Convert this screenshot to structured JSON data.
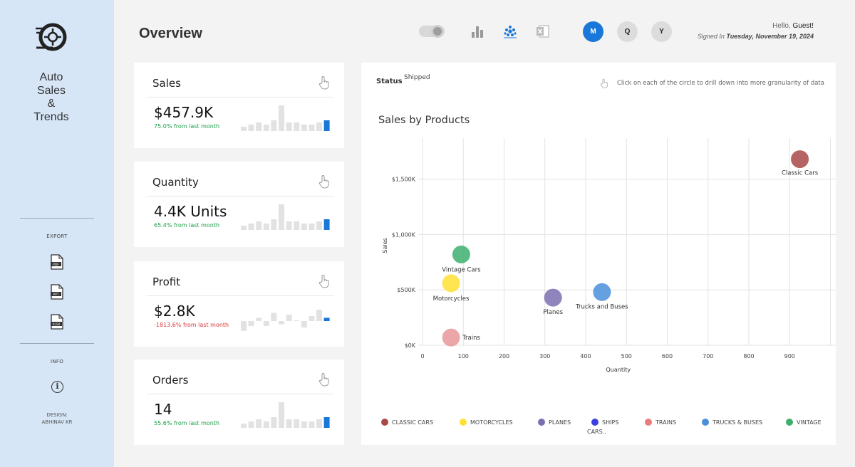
{
  "sidebar": {
    "brand_lines": [
      "Auto",
      "Sales",
      "&",
      "Trends"
    ],
    "export_label": "EXPORT",
    "exports": [
      {
        "icon": "pdf-file-icon",
        "text": "PDF"
      },
      {
        "icon": "ppt-file-icon",
        "text": "PPT"
      },
      {
        "icon": "xlsx-file-icon",
        "text": "XLSX"
      }
    ],
    "info_label": "INFO",
    "info_icon": "i",
    "design_label": "DESIGN:",
    "designer": "ABHINAV KR"
  },
  "header": {
    "title": "Overview",
    "icons": [
      "toggle-switch-icon",
      "bar-chart-icon",
      "bubble-chart-icon",
      "excel-icon"
    ],
    "periods": [
      {
        "label": "M",
        "active": true
      },
      {
        "label": "Q",
        "active": false
      },
      {
        "label": "Y",
        "active": false
      }
    ],
    "greeting_prefix": "Hello,",
    "user": "Guest!",
    "signed_prefix": "Signed In",
    "signed_date": "Tuesday, November 19, 2024"
  },
  "kpis": [
    {
      "title": "Sales",
      "value": "$457.9K",
      "change": "75.0% from last month",
      "trend": "up",
      "spark": [
        2,
        3,
        4,
        3,
        5,
        12,
        4,
        4,
        3,
        3,
        4,
        5
      ]
    },
    {
      "title": "Quantity",
      "value": "4.4K Units",
      "change": "65.4% from last month",
      "trend": "up",
      "spark": [
        2,
        3,
        4,
        3,
        5,
        12,
        4,
        4,
        3,
        3,
        4,
        5
      ]
    },
    {
      "title": "Profit",
      "value": "$2.8K",
      "change": "-1813.6% from last month",
      "trend": "down",
      "spark": [
        -6,
        -3,
        2,
        -3,
        5,
        -2,
        4,
        0,
        -4,
        3,
        7,
        2
      ]
    },
    {
      "title": "Orders",
      "value": "14",
      "change": "55.6% from last month",
      "trend": "up",
      "spark": [
        2,
        3,
        4,
        3,
        5,
        12,
        4,
        4,
        3,
        3,
        4,
        5
      ]
    }
  ],
  "panel": {
    "status_label": "Status",
    "status_value": "Shipped",
    "hint": "Click on each of the circle to drill down into more granularity of data"
  },
  "chart_data": {
    "type": "scatter",
    "title": "Sales by Products",
    "xlabel": "Quantity",
    "ylabel": "Sales",
    "xlim": [
      0,
      1000
    ],
    "ylim": [
      0,
      1870
    ],
    "x_ticks": [
      0,
      100,
      200,
      300,
      400,
      500,
      600,
      700,
      800,
      900
    ],
    "y_ticks": [
      {
        "value": 0,
        "label": "$0K"
      },
      {
        "value": 500,
        "label": "$500K"
      },
      {
        "value": 1000,
        "label": "$1,000K"
      },
      {
        "value": 1500,
        "label": "$1,500K"
      }
    ],
    "grid": true,
    "points": [
      {
        "label": "Classic Cars",
        "x": 925,
        "y": 1680,
        "color": "#a84848"
      },
      {
        "label": "Vintage Cars",
        "x": 95,
        "y": 820,
        "color": "#3db06e"
      },
      {
        "label": "Motorcycles",
        "x": 70,
        "y": 560,
        "color": "#ffe033"
      },
      {
        "label": "Planes",
        "x": 320,
        "y": 430,
        "color": "#7b6fb0"
      },
      {
        "label": "Trucks and Buses",
        "x": 440,
        "y": 480,
        "color": "#4a8fdc"
      },
      {
        "label": "Trains",
        "x": 70,
        "y": 70,
        "color": "#e89898"
      }
    ],
    "legend": [
      {
        "name": "CLASSIC CARS",
        "color": "#a84848"
      },
      {
        "name": "MOTORCYCLES",
        "color": "#ffe033"
      },
      {
        "name": "PLANES",
        "color": "#7b6fb0"
      },
      {
        "name": "SHIPS",
        "color": "#3b3fe0"
      },
      {
        "name": "TRAINS",
        "color": "#e87c7c"
      },
      {
        "name": "TRUCKS & BUSES",
        "color": "#4a8fdc"
      },
      {
        "name": "VINTAGE",
        "color": "#3db06e"
      }
    ],
    "legend_overflow": "CARS..",
    "legend_position": "bottom"
  },
  "colors": {
    "sidebar_bg": "#d6e6f7",
    "accent": "#1877d8",
    "positive": "#1f9e4a",
    "negative": "#d63a3a"
  }
}
